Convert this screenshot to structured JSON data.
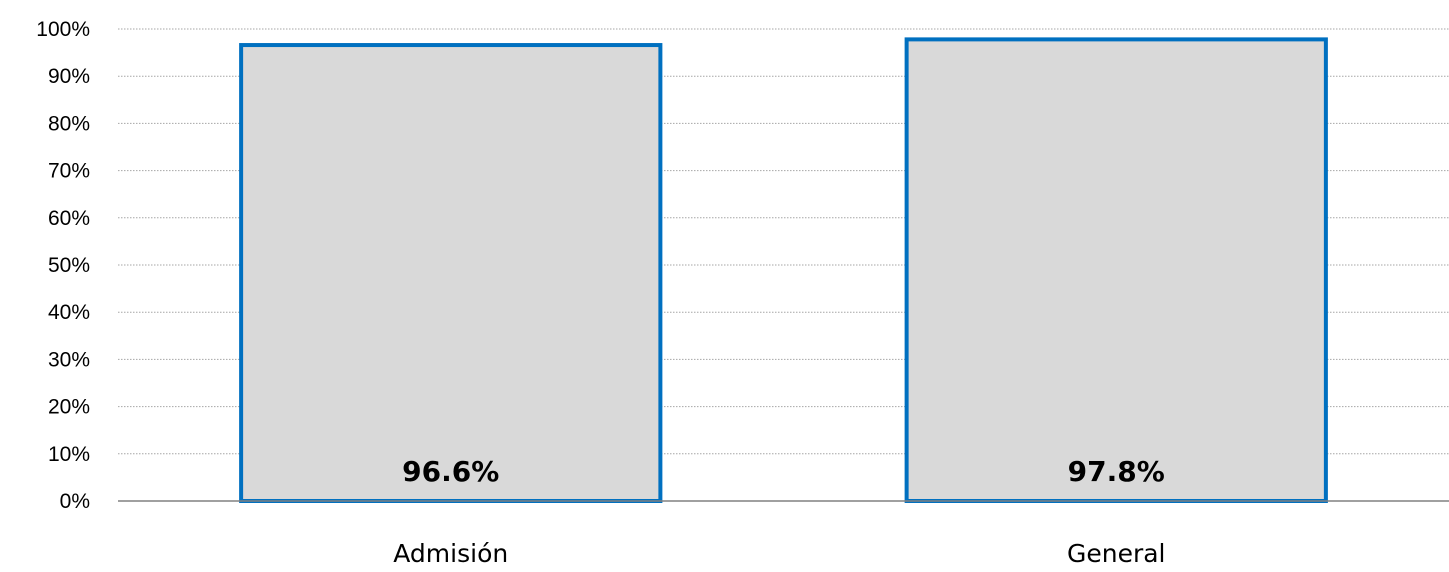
{
  "chart_data": {
    "type": "bar",
    "title": "",
    "xlabel": "",
    "ylabel": "",
    "categories": [
      "Admisión",
      "General"
    ],
    "values": [
      96.6,
      97.8
    ],
    "data_labels": [
      "96.6%",
      "97.8%"
    ],
    "ylim": [
      0,
      100
    ],
    "yticks": [
      0,
      10,
      20,
      30,
      40,
      50,
      60,
      70,
      80,
      90,
      100
    ],
    "ytick_labels": [
      "0%",
      "10%",
      "20%",
      "30%",
      "40%",
      "50%",
      "60%",
      "70%",
      "80%",
      "90%",
      "100%"
    ],
    "grid": true,
    "grid_style": "dotted",
    "legend": "none",
    "colors": {
      "bar_fill": "#d9d9d9",
      "bar_stroke": "#0070c0",
      "grid": "#a6a6a6",
      "axis": "#808080",
      "text": "#000000"
    }
  }
}
